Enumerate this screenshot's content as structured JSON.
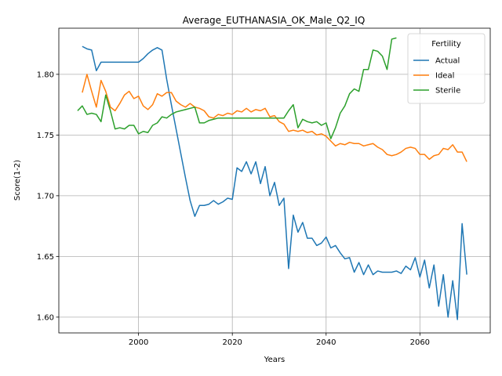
{
  "chart_data": {
    "type": "line",
    "title": "Average_EUTHANASIA_OK_Male_Q2_IQ",
    "xlabel": "Years",
    "ylabel": "Score(1-2)",
    "xlim": [
      1983,
      2075
    ],
    "ylim": [
      1.587,
      1.838
    ],
    "xticks": [
      2000,
      2020,
      2040,
      2060
    ],
    "yticks": [
      1.6,
      1.65,
      1.7,
      1.75,
      1.8
    ],
    "xtick_labels": [
      "2000",
      "2020",
      "2040",
      "2060"
    ],
    "ytick_labels": [
      "1.60",
      "1.65",
      "1.70",
      "1.75",
      "1.80"
    ],
    "grid": true,
    "legend": {
      "title": "Fertility",
      "placement": "top-right"
    },
    "series": [
      {
        "name": "Actual",
        "color": "#1f77b4",
        "x": [
          1988,
          1989,
          1990,
          1991,
          1992,
          1993,
          1994,
          1995,
          1996,
          1997,
          1998,
          1999,
          2000,
          2001,
          2002,
          2003,
          2004,
          2005,
          2006,
          2007,
          2008,
          2009,
          2010,
          2011,
          2012,
          2013,
          2014,
          2015,
          2016,
          2017,
          2018,
          2019,
          2020,
          2021,
          2022,
          2023,
          2024,
          2025,
          2026,
          2027,
          2028,
          2029,
          2030,
          2031,
          2032,
          2033,
          2034,
          2035,
          2036,
          2037,
          2038,
          2039,
          2040,
          2041,
          2042,
          2043,
          2044,
          2045,
          2046,
          2047,
          2048,
          2049,
          2050,
          2051,
          2052,
          2053,
          2054,
          2055,
          2056,
          2057,
          2058,
          2059,
          2060,
          2061,
          2062,
          2063,
          2064,
          2065,
          2066,
          2067,
          2068,
          2069,
          2070
        ],
        "y": [
          1.823,
          1.821,
          1.82,
          1.803,
          1.81,
          1.81,
          1.81,
          1.81,
          1.81,
          1.81,
          1.81,
          1.81,
          1.81,
          1.813,
          1.817,
          1.82,
          1.822,
          1.82,
          1.796,
          1.775,
          1.755,
          1.735,
          1.715,
          1.696,
          1.683,
          1.692,
          1.692,
          1.693,
          1.696,
          1.693,
          1.695,
          1.698,
          1.697,
          1.723,
          1.72,
          1.728,
          1.718,
          1.728,
          1.71,
          1.724,
          1.7,
          1.711,
          1.692,
          1.698,
          1.64,
          1.684,
          1.67,
          1.678,
          1.665,
          1.665,
          1.659,
          1.661,
          1.666,
          1.657,
          1.659,
          1.653,
          1.648,
          1.649,
          1.637,
          1.645,
          1.635,
          1.643,
          1.635,
          1.638,
          1.637,
          1.637,
          1.637,
          1.638,
          1.636,
          1.642,
          1.639,
          1.649,
          1.633,
          1.647,
          1.624,
          1.643,
          1.609,
          1.635,
          1.6,
          1.63,
          1.598,
          1.677,
          1.635
        ]
      },
      {
        "name": "Ideal",
        "color": "#ff7f0e",
        "x": [
          1988,
          1989,
          1990,
          1991,
          1992,
          1993,
          1994,
          1995,
          1996,
          1997,
          1998,
          1999,
          2000,
          2001,
          2002,
          2003,
          2004,
          2005,
          2006,
          2007,
          2008,
          2009,
          2010,
          2011,
          2012,
          2013,
          2014,
          2015,
          2016,
          2017,
          2018,
          2019,
          2020,
          2021,
          2022,
          2023,
          2024,
          2025,
          2026,
          2027,
          2028,
          2029,
          2030,
          2031,
          2032,
          2033,
          2034,
          2035,
          2036,
          2037,
          2038,
          2039,
          2040,
          2041,
          2042,
          2043,
          2044,
          2045,
          2046,
          2047,
          2048,
          2049,
          2050,
          2051,
          2052,
          2053,
          2054,
          2055,
          2056,
          2057,
          2058,
          2059,
          2060,
          2061,
          2062,
          2063,
          2064,
          2065,
          2066,
          2067,
          2068,
          2069,
          2070
        ],
        "y": [
          1.785,
          1.8,
          1.786,
          1.773,
          1.795,
          1.786,
          1.773,
          1.77,
          1.776,
          1.783,
          1.786,
          1.78,
          1.782,
          1.774,
          1.771,
          1.775,
          1.784,
          1.782,
          1.785,
          1.785,
          1.778,
          1.775,
          1.773,
          1.776,
          1.773,
          1.772,
          1.77,
          1.765,
          1.764,
          1.767,
          1.766,
          1.768,
          1.767,
          1.77,
          1.769,
          1.772,
          1.769,
          1.771,
          1.77,
          1.772,
          1.765,
          1.766,
          1.761,
          1.759,
          1.753,
          1.754,
          1.753,
          1.754,
          1.752,
          1.753,
          1.75,
          1.751,
          1.749,
          1.745,
          1.741,
          1.743,
          1.742,
          1.744,
          1.743,
          1.743,
          1.741,
          1.742,
          1.743,
          1.74,
          1.738,
          1.734,
          1.733,
          1.734,
          1.736,
          1.739,
          1.74,
          1.739,
          1.734,
          1.734,
          1.73,
          1.733,
          1.734,
          1.739,
          1.738,
          1.742,
          1.736,
          1.736,
          1.728
        ]
      },
      {
        "name": "Sterile",
        "color": "#2ca02c",
        "x": [
          1987,
          1988,
          1989,
          1990,
          1991,
          1992,
          1993,
          1994,
          1995,
          1996,
          1997,
          1998,
          1999,
          2000,
          2001,
          2002,
          2003,
          2004,
          2005,
          2006,
          2007,
          2008,
          2009,
          2010,
          2011,
          2012,
          2013,
          2014,
          2015,
          2016,
          2017,
          2018,
          2019,
          2020,
          2021,
          2022,
          2023,
          2024,
          2025,
          2026,
          2027,
          2028,
          2029,
          2030,
          2031,
          2032,
          2033,
          2034,
          2035,
          2036,
          2037,
          2038,
          2039,
          2040,
          2041,
          2042,
          2043,
          2044,
          2045,
          2046,
          2047,
          2048,
          2049,
          2050,
          2051,
          2052,
          2053,
          2054,
          2055
        ],
        "y": [
          1.77,
          1.774,
          1.767,
          1.768,
          1.767,
          1.761,
          1.783,
          1.77,
          1.755,
          1.756,
          1.755,
          1.758,
          1.758,
          1.751,
          1.753,
          1.752,
          1.758,
          1.76,
          1.765,
          1.764,
          1.767,
          1.769,
          1.77,
          1.771,
          1.772,
          1.773,
          1.76,
          1.76,
          1.762,
          1.763,
          1.764,
          1.764,
          1.764,
          1.764,
          1.764,
          1.764,
          1.764,
          1.764,
          1.764,
          1.764,
          1.764,
          1.764,
          1.764,
          1.764,
          1.764,
          1.77,
          1.775,
          1.756,
          1.763,
          1.761,
          1.76,
          1.761,
          1.758,
          1.76,
          1.747,
          1.756,
          1.768,
          1.774,
          1.784,
          1.788,
          1.786,
          1.804,
          1.804,
          1.82,
          1.819,
          1.815,
          1.804,
          1.829,
          1.83
        ]
      }
    ]
  }
}
